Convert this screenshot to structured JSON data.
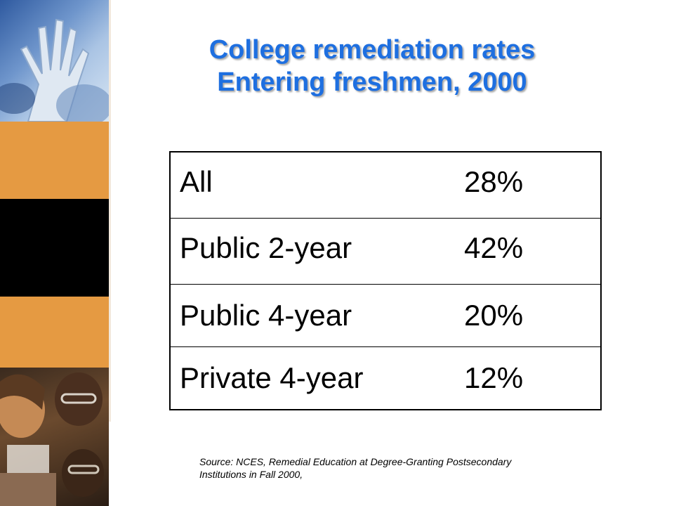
{
  "slide": {
    "title_line1": "College remediation rates",
    "title_line2": "Entering freshmen, 2000",
    "colors": {
      "title": "#1e6fe0",
      "accent_orange": "#e59a42",
      "band_black": "#000000"
    }
  },
  "table": {
    "rows": [
      {
        "category": "All",
        "rate": "28%"
      },
      {
        "category": "Public 2-year",
        "rate": "42%"
      },
      {
        "category": "Public 4-year",
        "rate": "20%"
      },
      {
        "category": "Private 4-year",
        "rate": "12%"
      }
    ]
  },
  "chart_data": {
    "type": "table",
    "title": "College remediation rates Entering freshmen, 2000",
    "categories": [
      "All",
      "Public 2-year",
      "Public 4-year",
      "Private 4-year"
    ],
    "values": [
      28,
      42,
      20,
      12
    ]
  },
  "source": {
    "line1": "Source:  NCES, Remedial Education at Degree-Granting Postsecondary",
    "line2": "Institutions in Fall 2000,"
  }
}
